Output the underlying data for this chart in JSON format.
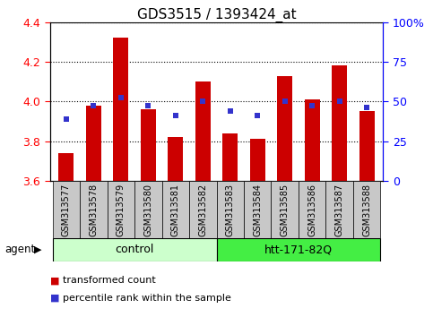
{
  "title": "GDS3515 / 1393424_at",
  "categories": [
    "GSM313577",
    "GSM313578",
    "GSM313579",
    "GSM313580",
    "GSM313581",
    "GSM313582",
    "GSM313583",
    "GSM313584",
    "GSM313585",
    "GSM313586",
    "GSM313587",
    "GSM313588"
  ],
  "bar_values": [
    3.74,
    3.98,
    4.32,
    3.96,
    3.82,
    4.1,
    3.84,
    3.81,
    4.13,
    4.01,
    4.18,
    3.95
  ],
  "percentile_values": [
    3.91,
    3.98,
    4.02,
    3.98,
    3.93,
    4.0,
    3.95,
    3.93,
    4.0,
    3.98,
    4.0,
    3.97
  ],
  "bar_bottom": 3.6,
  "ylim_left": [
    3.6,
    4.4
  ],
  "ylim_right": [
    0,
    100
  ],
  "yticks_left": [
    3.6,
    3.8,
    4.0,
    4.2,
    4.4
  ],
  "yticks_right": [
    0,
    25,
    50,
    75,
    100
  ],
  "ytick_labels_right": [
    "0",
    "25",
    "50",
    "75",
    "100%"
  ],
  "bar_color": "#cc0000",
  "percentile_color": "#3333cc",
  "group_control_label": "control",
  "group_htt_label": "htt-171-82Q",
  "agent_label": "agent",
  "legend_bar_label": "transformed count",
  "legend_pct_label": "percentile rank within the sample",
  "bar_width": 0.55,
  "xtick_label_size": 7,
  "ytick_label_size_left": 9,
  "ytick_label_size_right": 9,
  "title_fontsize": 11,
  "group_box_color_control": "#ccffcc",
  "group_box_color_htt": "#44ee44",
  "plot_bg_color": "#ffffff",
  "xtick_box_color": "#c8c8c8"
}
